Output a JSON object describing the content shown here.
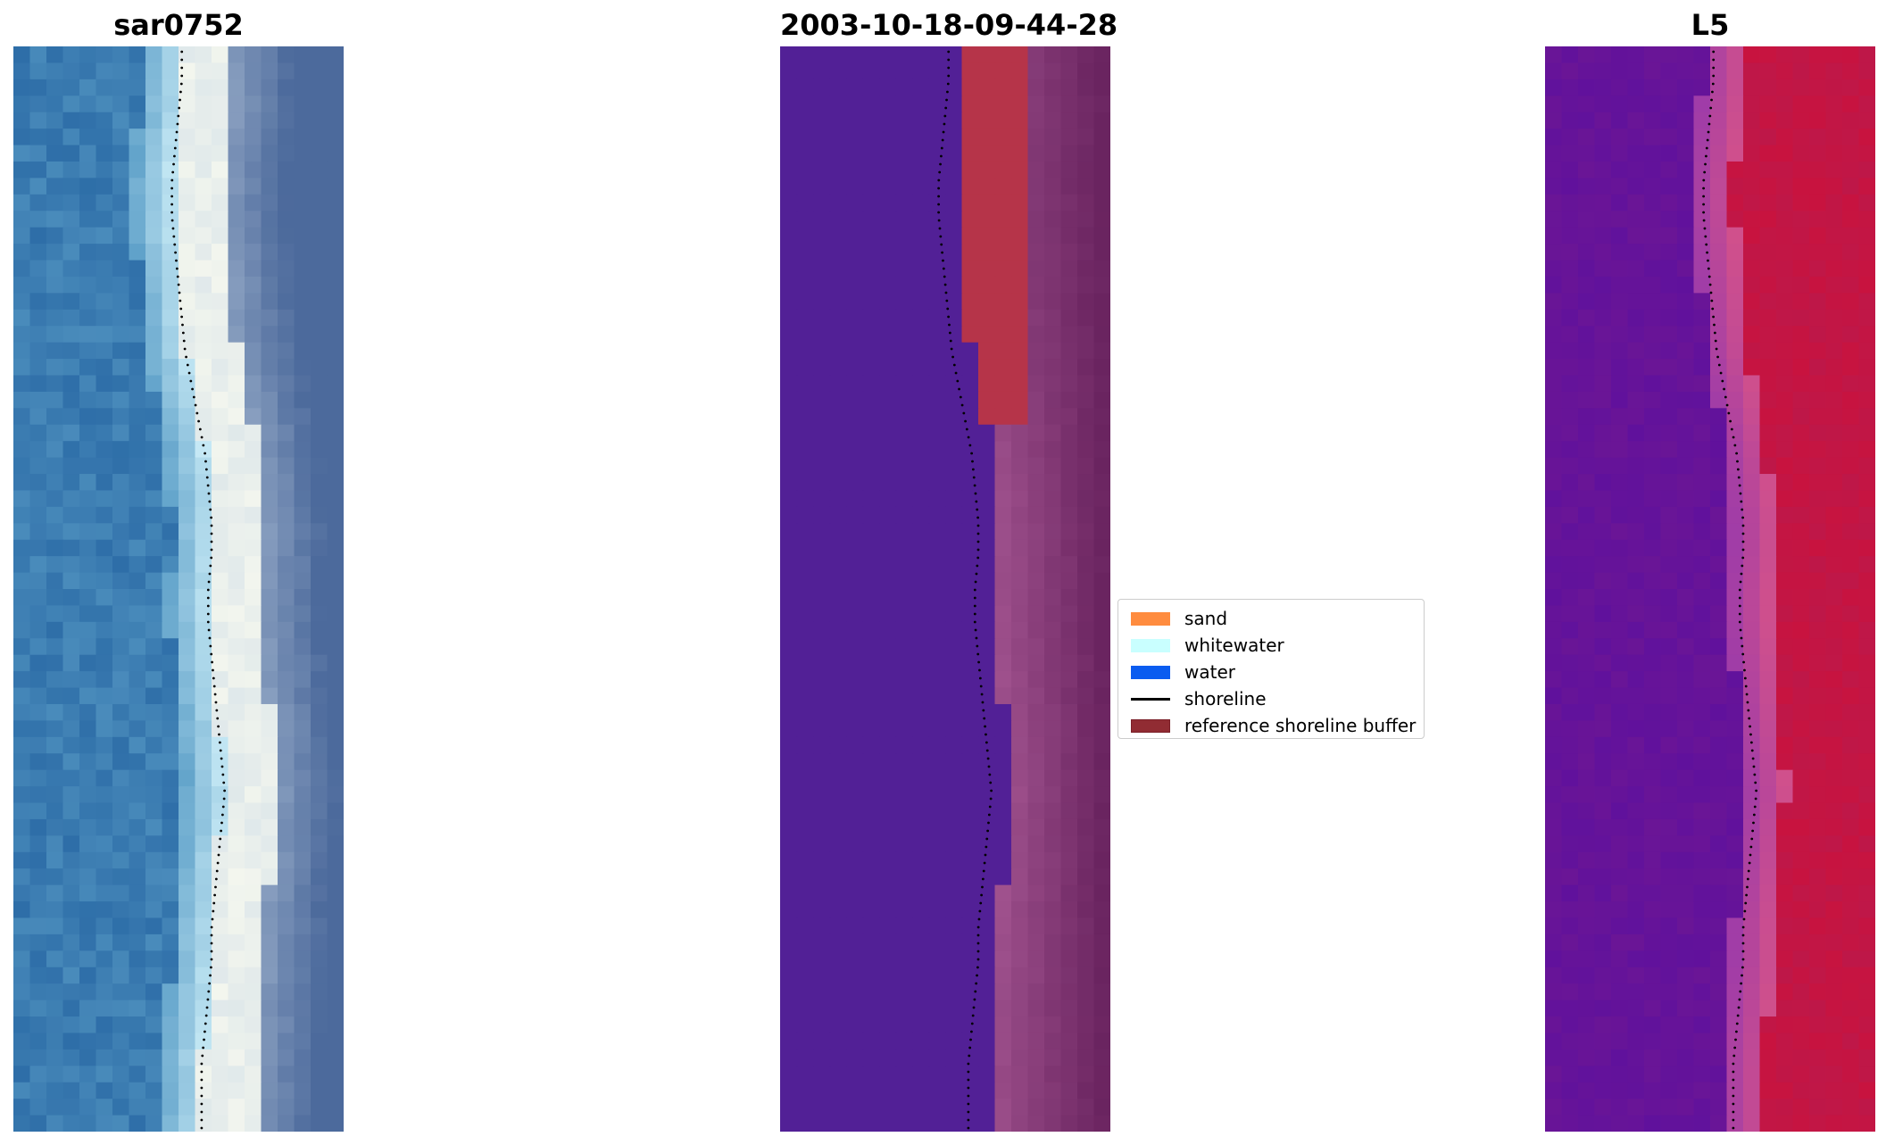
{
  "panels": {
    "left": {
      "title": "sar0752"
    },
    "middle": {
      "title": "2003-10-18-09-44-28"
    },
    "right": {
      "title": "L5"
    }
  },
  "legend": {
    "items": [
      {
        "label": "sand",
        "kind": "patch",
        "color": "#ff8c3f"
      },
      {
        "label": "whitewater",
        "kind": "patch",
        "color": "#c9ffff"
      },
      {
        "label": "water",
        "kind": "patch",
        "color": "#0a5cf0"
      },
      {
        "label": "shoreline",
        "kind": "line",
        "color": "#000000"
      },
      {
        "label": "reference shoreline buffer",
        "kind": "patch",
        "color": "#912c33",
        "edge": "#7a1f28"
      }
    ]
  },
  "colors": {
    "rgb_water_dark": "#2e6ea8",
    "rgb_water_light": "#5c9fc8",
    "rgb_whitewater": "#f3f6ee",
    "rgb_land": "#4c6a9c",
    "class_water": "#522096",
    "class_buffer": "#b63449",
    "class_sand": "#a0528e",
    "mndwi_water": "#6a1596",
    "mndwi_land": "#c8133f",
    "shoreline": "#000000"
  },
  "shoreline_profile": [
    0.51,
    0.51,
    0.5,
    0.49,
    0.48,
    0.48,
    0.49,
    0.5,
    0.51,
    0.52,
    0.54,
    0.56,
    0.58,
    0.59,
    0.6,
    0.6,
    0.59,
    0.59,
    0.6,
    0.61,
    0.62,
    0.63,
    0.64,
    0.63,
    0.62,
    0.61,
    0.6,
    0.6,
    0.59,
    0.58,
    0.57,
    0.57,
    0.57
  ]
}
